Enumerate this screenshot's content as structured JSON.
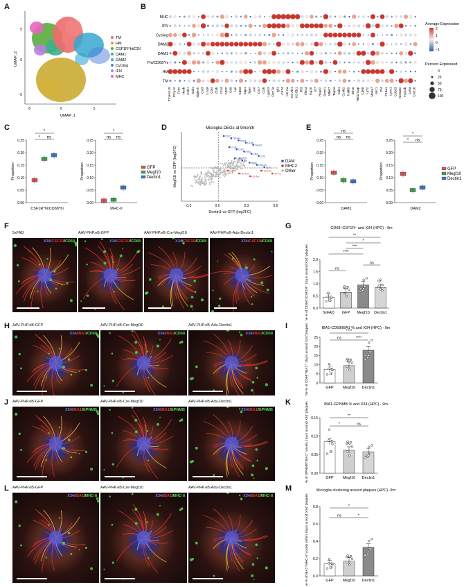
{
  "panels": {
    "A": {
      "letter": "A",
      "xlabel": "UMAP_1",
      "ylabel": "UMAP_2",
      "xticks": [
        "-5",
        "0",
        "5"
      ],
      "yticks": [
        "5",
        "0",
        "-5"
      ],
      "legend": [
        {
          "label": "TM",
          "color": "#f06b6b"
        },
        {
          "label": "HM",
          "color": "#c8a626"
        },
        {
          "label": "CSF1R^hi/CD68^hi",
          "color": "#5aab3c"
        },
        {
          "label": "DAM1",
          "color": "#3cb08c"
        },
        {
          "label": "DAM2",
          "color": "#36a8d0"
        },
        {
          "label": "Cycling",
          "color": "#4f7fe0"
        },
        {
          "label": "IFN",
          "color": "#b77fe0"
        },
        {
          "label": "MHC",
          "color": "#e766c0"
        }
      ]
    },
    "B": {
      "letter": "B",
      "rows": [
        "MHC",
        "IFN",
        "Cycling",
        "DAM2",
        "DAM1",
        "CSF1R^hi/CD68^hi",
        "HM",
        "TM"
      ],
      "genes": [
        "Tmem119",
        "P2ry12",
        "Fcrls",
        "Hexb",
        "Csf1r",
        "Sall1",
        "Siglech",
        "Cst3",
        "C1qa",
        "Ctss",
        "Ctsb",
        "Ctsd",
        "Apoe",
        "Cd9",
        "Lpl",
        "Cd63",
        "Spp1",
        "Itgax",
        "Axl",
        "Cst7",
        "Ccl6",
        "Lgals3",
        "Clec7a",
        "Igf1",
        "Cd74",
        "H2-Aa",
        "H2-Ab1",
        "H2-Eb1",
        "Ifit3",
        "Ifitm3",
        "Isg15",
        "Irf7",
        "Rsad2",
        "Stmn1",
        "Mki67",
        "Top2a",
        "Cdk1",
        "Ccnb2",
        "Tubb5",
        "Birc5",
        "Hist1h2ap",
        "Cd68",
        "Lyz2",
        "Ms4a7",
        "Mrc1",
        "Pf4",
        "F13a1",
        "Lyve1",
        "Cd163",
        "Ms4a6c",
        "Fcgr2b",
        "Ly6a",
        "Cxcl16"
      ],
      "legend": {
        "avg_title": "Average Expression",
        "avg_ticks": [
          "2",
          "1",
          "0",
          "−1"
        ],
        "pct_title": "Percent Expressed",
        "pct_ticks": [
          "0",
          "25",
          "50",
          "75",
          "100"
        ]
      }
    },
    "C": {
      "letter": "C",
      "left": {
        "ylabel": "Proportion",
        "xlabel": "CSF1R^hi/CD68^hi",
        "yticks": [
          "0.25",
          "0.20",
          "0.15",
          "0.10",
          "0.05",
          "0.00"
        ],
        "sig": [
          "*",
          "*",
          "ns"
        ]
      },
      "right": {
        "ylabel": "Proportion",
        "xlabel": "MHC-II",
        "yticks": [
          "0.25",
          "0.20",
          "0.15",
          "0.10",
          "0.05",
          "0.00"
        ],
        "sig": [
          "*",
          "ns",
          "ns"
        ]
      },
      "legend": [
        {
          "label": "GFP",
          "color": "#d9544f"
        },
        {
          "label": "Megf10",
          "color": "#3aa24a"
        },
        {
          "label": "Dectin1",
          "color": "#3b78c3"
        }
      ]
    },
    "D": {
      "letter": "D",
      "title": "Microglia DEGs at 9month",
      "xlabel": "Dectin1 vs GFP (log2FC)",
      "ylabel": "Megf10 vs GFP (log2FC)",
      "xticks": [
        "-0.3",
        "0.0",
        "0.3",
        "0.6"
      ],
      "legend": [
        {
          "label": "DAM",
          "color": "#2d4fa8"
        },
        {
          "label": "MHC2",
          "color": "#d9342b"
        },
        {
          "label": "Other",
          "color": "#b5b5b5"
        }
      ],
      "dam_genes": [
        "Cst7",
        "Tyrobp",
        "Apoe",
        "C1qb",
        "Trem2",
        "C1qc",
        "Ctsb",
        "Fth1",
        "Ctss",
        "Cd9",
        "Cd63",
        "Lpl",
        "Itgax",
        "Clec7a",
        "Lyz2"
      ],
      "mhc_genes": [
        "Cd74",
        "H2-Ab1",
        "H2-Aa",
        "H2-Eb1",
        "H2-K1"
      ]
    },
    "E": {
      "letter": "E",
      "left": {
        "ylabel": "Proportion",
        "xlabel": "DAM1",
        "yticks": [
          "0.25",
          "0.20",
          "0.15",
          "0.10",
          "0.05",
          "0.00"
        ],
        "sig": [
          "ns",
          "ns",
          "ns"
        ]
      },
      "right": {
        "ylabel": "Proportion",
        "xlabel": "DAM2",
        "yticks": [
          "0.25",
          "0.20",
          "0.15",
          "0.10",
          "0.05",
          "0.00"
        ],
        "sig": [
          "*",
          "*",
          "ns"
        ]
      },
      "legend": [
        {
          "label": "GFP",
          "color": "#d9544f"
        },
        {
          "label": "Megf10",
          "color": "#3aa24a"
        },
        {
          "label": "Dectin1",
          "color": "#3b78c3"
        }
      ]
    },
    "F": {
      "letter": "F",
      "images": [
        {
          "title": "5xFAD",
          "stain": [
            "X34/",
            "CSF1R",
            "/",
            "CD68"
          ]
        },
        {
          "title": "AAV-PHP.eB-GFP",
          "stain": [
            "X34/",
            "CSF1R",
            "/",
            "CD68"
          ]
        },
        {
          "title": "AAV-PHP.eB-Cre-Megf10",
          "stain": [
            "X34/",
            "CSF1R",
            "/",
            "CD68"
          ]
        },
        {
          "title": "AAV-PHP.eB-Adu-Dectin1",
          "stain": [
            "X34/",
            "CSF1R",
            "/",
            "CD68"
          ]
        }
      ]
    },
    "G": {
      "letter": "G",
      "title": "CD68⁺CSF1R⁺ and X34 (HPC) - 9m",
      "ylabel": "The % of CD68⁺/CSF1R⁺ 15μm around X34⁺plaques",
      "yticks": [
        "2.0",
        "1.5",
        "1.0",
        "0.5",
        "0.0"
      ],
      "categories": [
        "5xFAD",
        "GFP",
        "Megf10",
        "Dectin1"
      ],
      "sig": [
        "**",
        "*",
        "***",
        "****",
        "ns",
        "ns"
      ]
    },
    "H": {
      "letter": "H",
      "images": [
        {
          "title": "AAV-PHP.eB-GFP",
          "stain": [
            "X34/",
            "IBA1",
            "/",
            "CD68"
          ]
        },
        {
          "title": "AAV-PHP.eB-Cre-Megf10",
          "stain": [
            "X34/",
            "IBA1",
            "/",
            "CD68"
          ]
        },
        {
          "title": "AAV-PHP.eB-Adu-Dectin1",
          "stain": [
            "X34/",
            "IBA1",
            "/",
            "CD68"
          ]
        }
      ]
    },
    "I": {
      "letter": "I",
      "title": "IBA1-CD68/IBA1 % and X34 (HPC) - 9m",
      "ylabel": "The % of CD68⁺IBA1⁺ 15μm around X34⁺plaques",
      "yticks": [
        "25",
        "20",
        "15",
        "10",
        "5",
        "0"
      ],
      "categories": [
        "GFP",
        "Megf10",
        "Dectin1"
      ],
      "sig": [
        "****",
        "ns",
        "****"
      ]
    },
    "J": {
      "letter": "J",
      "images": [
        {
          "title": "AAV-PHP.eB-GFP",
          "stain": [
            "X34/",
            "IBA1",
            "/",
            "GPNMB"
          ]
        },
        {
          "title": "AAV-PHP.eB-Cre-Megf10",
          "stain": [
            "X34/",
            "IBA1",
            "/",
            "GPNMB"
          ]
        },
        {
          "title": "AAV-PHP.eB-Adu-Dectin1",
          "stain": [
            "X34/",
            "IBA1",
            "/",
            "GPNMB"
          ]
        }
      ]
    },
    "K": {
      "letter": "K",
      "title": "IBA1-GPNMB % and X34 (HPC) - 9m",
      "ylabel": "The % of GPNMB⁺IBA1⁺ voxels 15μm around X34⁺plaques",
      "yticks": [
        "0.15",
        "0.10",
        "0.05",
        "0.00"
      ],
      "categories": [
        "GFP",
        "Megf10",
        "Dectin1"
      ],
      "sig": [
        "**",
        "*",
        "ns"
      ]
    },
    "L": {
      "letter": "L",
      "images": [
        {
          "title": "AAV-PHP.eB-GFP",
          "stain": [
            "X34/",
            "IBA1",
            "/",
            "MHC-II"
          ]
        },
        {
          "title": "AAV-PHP.eB-Cre-Megf10",
          "stain": [
            "X34/",
            "IBA1",
            "/",
            "MHC-II"
          ]
        },
        {
          "title": "AAV-PHP.eB-Adu-Dectin1",
          "stain": [
            "X34/",
            "IBA1",
            "/",
            "MHC-II"
          ]
        }
      ]
    },
    "M": {
      "letter": "M",
      "title": "Microglia clustering around plaques (HPC) -9m",
      "ylabel": "The % of IBA1⁺MHC-II⁺voxels within 15μm around X34⁺plaques",
      "yticks": [
        "0.8",
        "0.6",
        "0.4",
        "0.2",
        "0.0"
      ],
      "categories": [
        "GFP",
        "Megf10",
        "Dectin1"
      ],
      "sig": [
        "*",
        "ns",
        "*"
      ]
    }
  },
  "chart_data": [
    {
      "type": "box",
      "title": "",
      "xlabel": "CSF1R^hi/CD68^hi",
      "ylabel": "Proportion",
      "categories": [
        "GFP",
        "Megf10",
        "Dectin1"
      ],
      "values": [
        0.09,
        0.175,
        0.19
      ],
      "ylim": [
        0,
        0.25
      ]
    },
    {
      "type": "box",
      "xlabel": "MHC-II",
      "ylabel": "Proportion",
      "categories": [
        "GFP",
        "Megf10",
        "Dectin1"
      ],
      "values": [
        0.008,
        0.012,
        0.06
      ],
      "ylim": [
        0,
        0.25
      ]
    },
    {
      "type": "box",
      "xlabel": "DAM1",
      "ylabel": "Proportion",
      "categories": [
        "GFP",
        "Megf10",
        "Dectin1"
      ],
      "values": [
        0.12,
        0.09,
        0.085
      ],
      "ylim": [
        0,
        0.25
      ]
    },
    {
      "type": "box",
      "xlabel": "DAM2",
      "ylabel": "Proportion",
      "categories": [
        "GFP",
        "Megf10",
        "Dectin1"
      ],
      "values": [
        0.115,
        0.05,
        0.06
      ],
      "ylim": [
        0,
        0.25
      ]
    },
    {
      "type": "bar",
      "title": "CD68⁺CSF1R⁺ and X34 (HPC) - 9m",
      "categories": [
        "5xFAD",
        "GFP",
        "Megf10",
        "Dectin1"
      ],
      "values": [
        0.45,
        0.65,
        0.95,
        0.85
      ],
      "ylim": [
        0,
        2.0
      ]
    },
    {
      "type": "bar",
      "title": "IBA1-CD68/IBA1 % and X34 (HPC) - 9m",
      "categories": [
        "GFP",
        "Megf10",
        "Dectin1"
      ],
      "values": [
        7.5,
        9.5,
        18
      ],
      "ylim": [
        0,
        25
      ]
    },
    {
      "type": "bar",
      "title": "IBA1-GPNMB % and X34 (HPC) - 9m",
      "categories": [
        "GFP",
        "Megf10",
        "Dectin1"
      ],
      "values": [
        0.085,
        0.062,
        0.058
      ],
      "ylim": [
        0,
        0.15
      ]
    },
    {
      "type": "bar",
      "title": "Microglia clustering around plaques (HPC) -9m",
      "categories": [
        "GFP",
        "Megf10",
        "Dectin1"
      ],
      "values": [
        0.14,
        0.17,
        0.33
      ],
      "ylim": [
        0,
        0.8
      ]
    }
  ]
}
